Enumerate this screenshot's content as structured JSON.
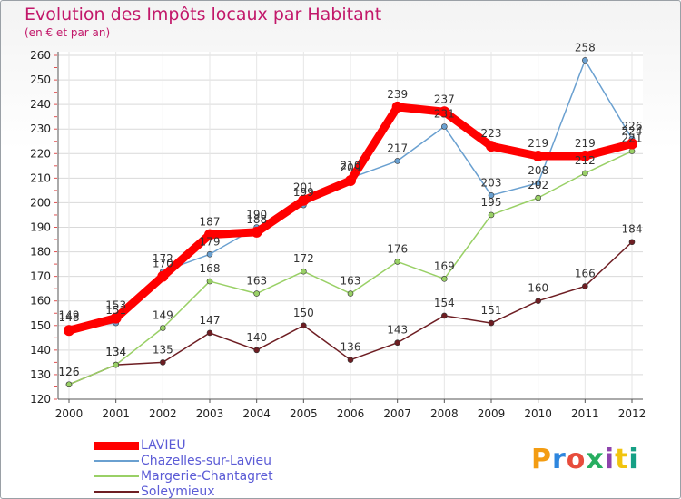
{
  "title": "Evolution des Impôts locaux par Habitant",
  "subtitle": "(en € et par an)",
  "logo": "Proxiti",
  "chart_data": {
    "type": "line",
    "x": [
      "2000",
      "2001",
      "2002",
      "2003",
      "2004",
      "2005",
      "2006",
      "2007",
      "2008",
      "2009",
      "2010",
      "2011",
      "2012"
    ],
    "ylim": [
      120,
      260
    ],
    "yticks": [
      120,
      130,
      140,
      150,
      160,
      170,
      180,
      190,
      200,
      210,
      220,
      230,
      240,
      250,
      260
    ],
    "grid": true,
    "legend_position": "bottom-left",
    "series": [
      {
        "name": "Soleymieux",
        "color": "#6e1e23",
        "values": [
          126,
          134,
          135,
          147,
          140,
          150,
          136,
          143,
          154,
          151,
          160,
          166,
          184
        ]
      },
      {
        "name": "Margerie-Chantagret",
        "color": "#99d066",
        "values": [
          126,
          134,
          149,
          168,
          163,
          172,
          163,
          176,
          169,
          195,
          202,
          212,
          221
        ]
      },
      {
        "name": "Chazelles-sur-Lavieu",
        "color": "#6aa0d0",
        "values": [
          149,
          151,
          172,
          179,
          190,
          199,
          210,
          217,
          231,
          203,
          208,
          258,
          226
        ]
      },
      {
        "name": "LAVIEU",
        "color": "#ff0000",
        "values": [
          148,
          153,
          170,
          187,
          188,
          201,
          209,
          239,
          237,
          223,
          219,
          219,
          224
        ]
      }
    ]
  }
}
